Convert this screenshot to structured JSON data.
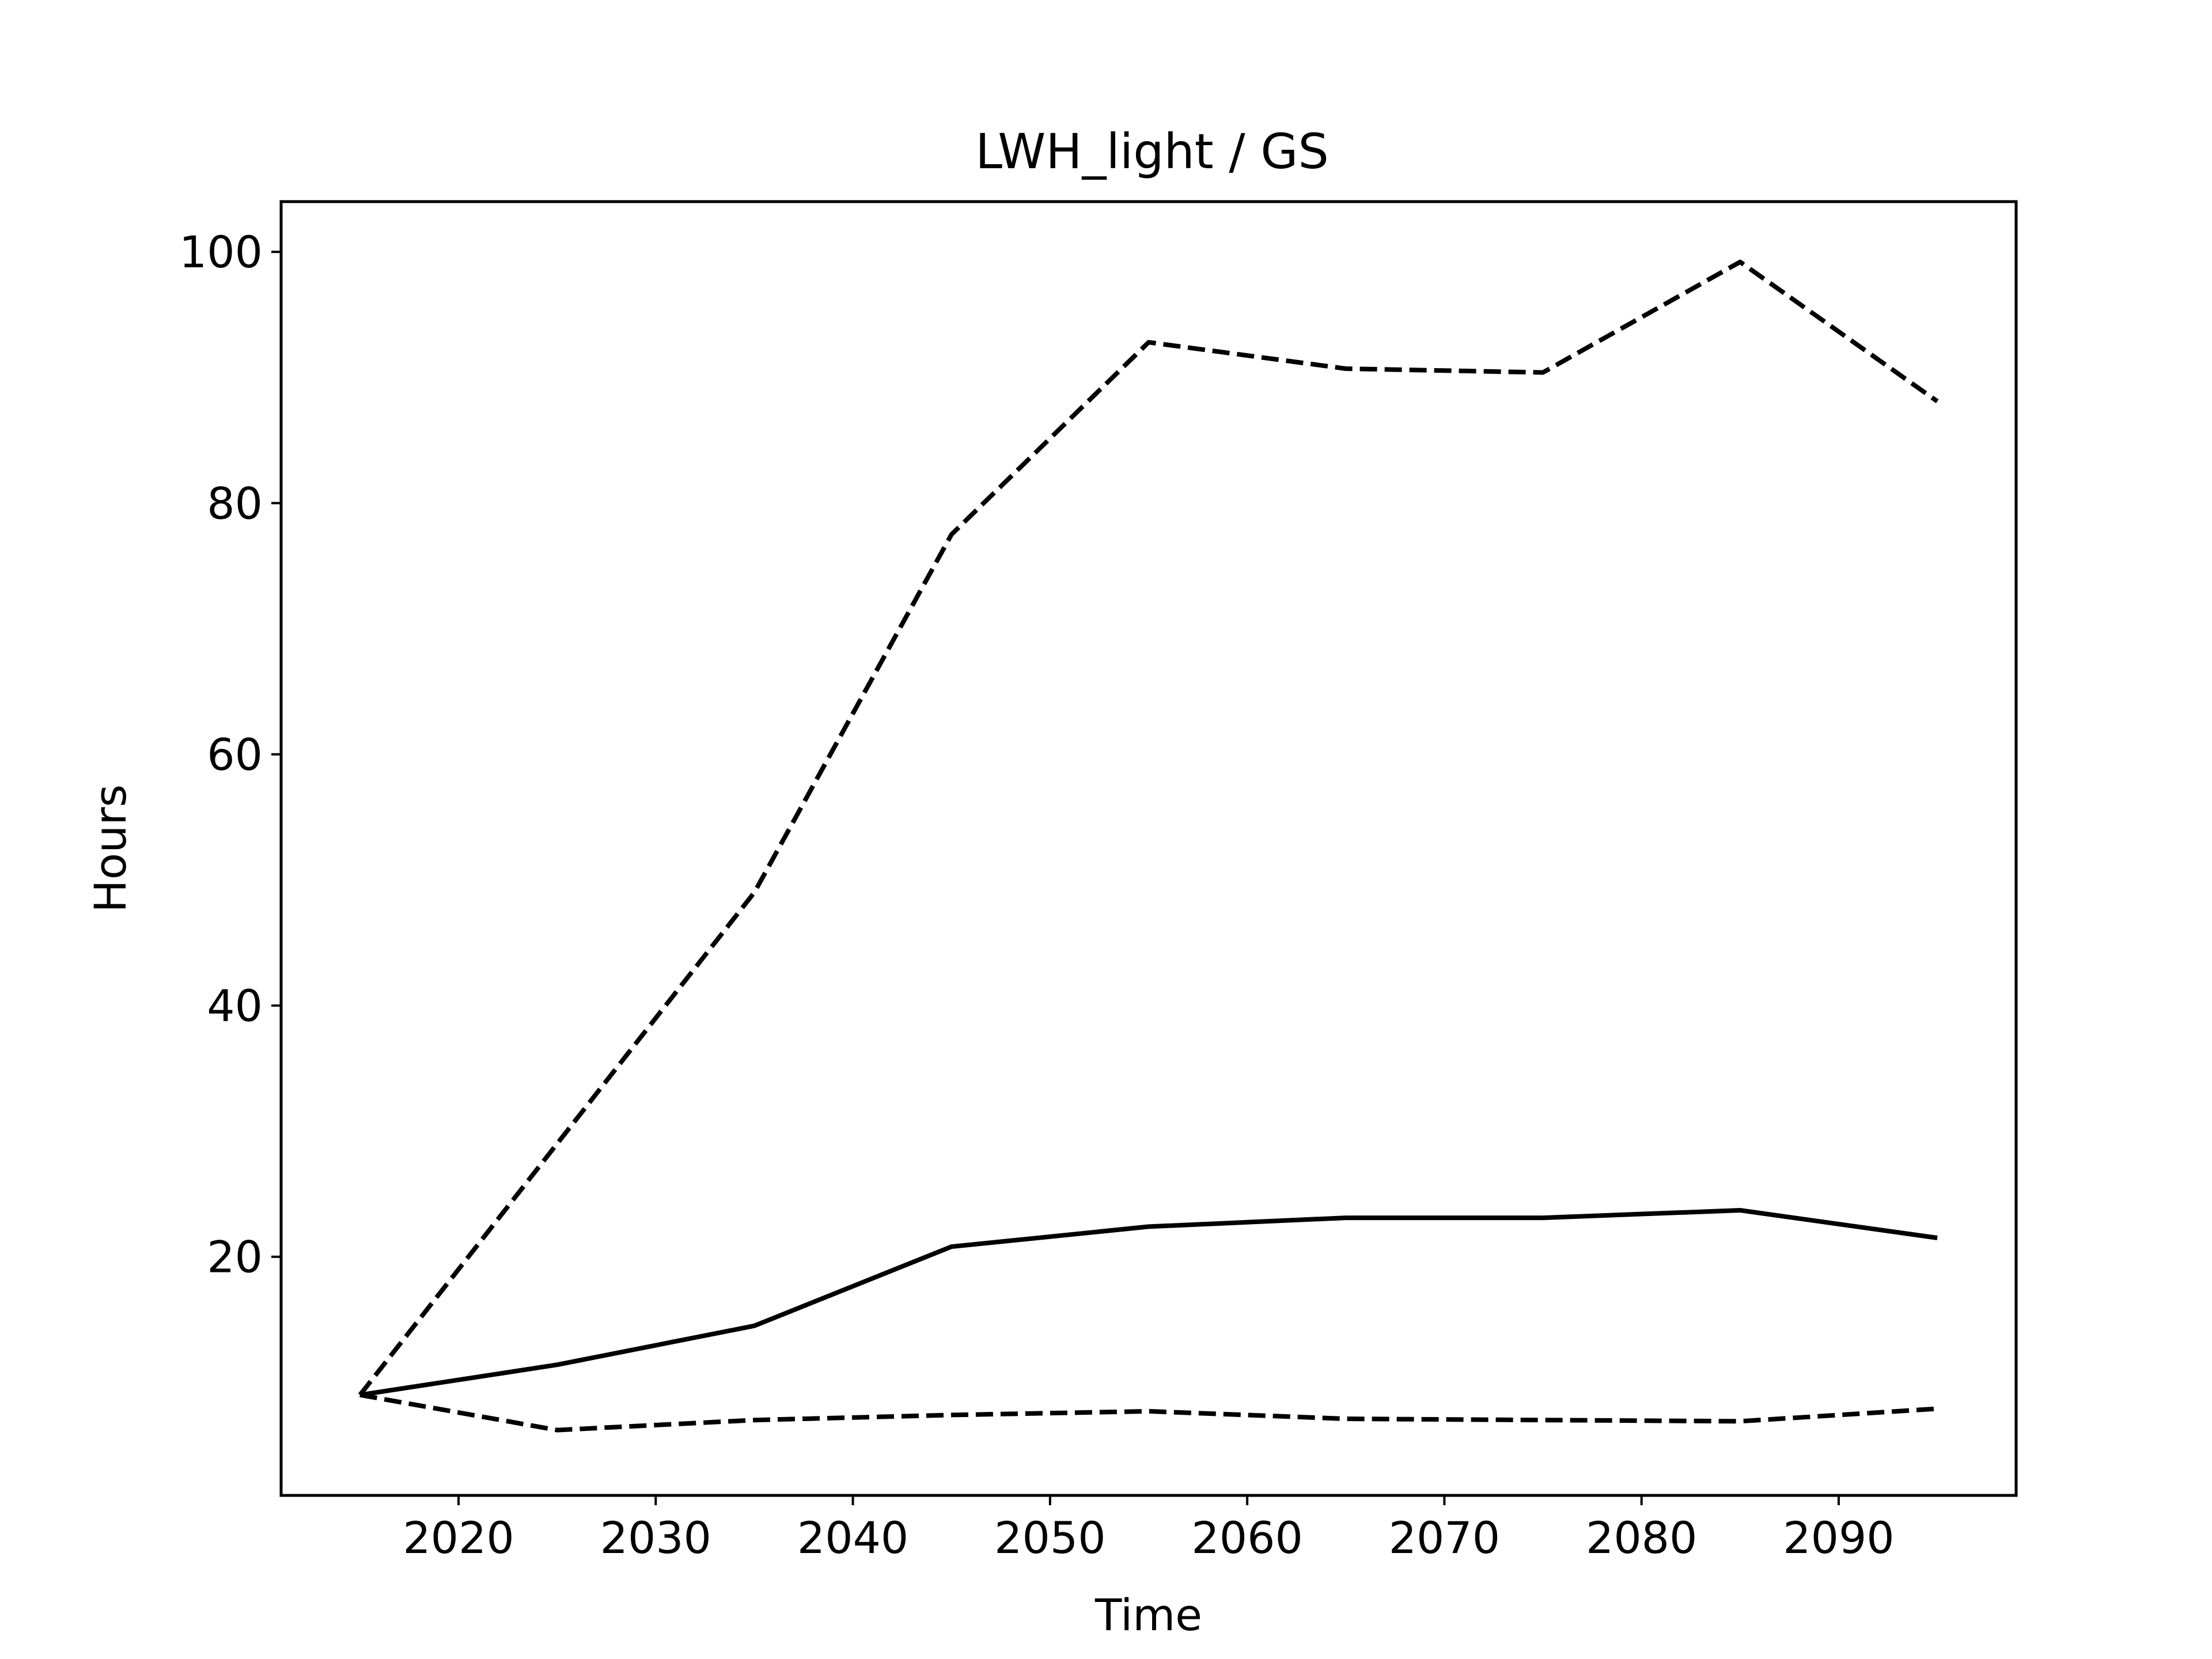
{
  "chart_data": {
    "type": "line",
    "title": "LWH_light / GS",
    "xlabel": "Time",
    "ylabel": "Hours",
    "xlim": [
      2011,
      2099
    ],
    "ylim": [
      1,
      104
    ],
    "xticks": [
      2020,
      2030,
      2040,
      2050,
      2060,
      2070,
      2080,
      2090
    ],
    "yticks": [
      20,
      40,
      60,
      80,
      100
    ],
    "grid": false,
    "legend": "none",
    "x": [
      2015,
      2025,
      2035,
      2045,
      2055,
      2065,
      2075,
      2085,
      2095
    ],
    "series": [
      {
        "style": "dashed",
        "color": "#000000",
        "values": [
          9.0,
          29.0,
          49.0,
          77.5,
          92.8,
          90.7,
          90.4,
          99.2,
          88.1
        ]
      },
      {
        "style": "solid",
        "color": "#000000",
        "values": [
          9.0,
          11.4,
          14.5,
          20.8,
          22.4,
          23.1,
          23.1,
          23.7,
          21.5
        ]
      },
      {
        "style": "dashed",
        "color": "#000000",
        "values": [
          9.0,
          6.2,
          7.0,
          7.4,
          7.7,
          7.1,
          7.0,
          6.9,
          7.9
        ]
      }
    ]
  }
}
